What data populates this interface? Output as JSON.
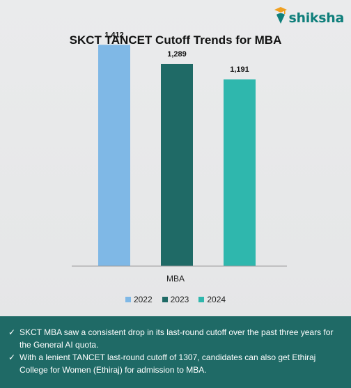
{
  "brand": {
    "name": "shiksha"
  },
  "chart_data": {
    "type": "bar",
    "title": "SKCT TANCET Cutoff Trends for MBA",
    "categories": [
      "MBA"
    ],
    "series": [
      {
        "name": "2022",
        "values": [
          1412
        ],
        "labels": [
          "1,412"
        ],
        "color": "#7fb8e6"
      },
      {
        "name": "2023",
        "values": [
          1289
        ],
        "labels": [
          "1,289"
        ],
        "color": "#1f6a66"
      },
      {
        "name": "2024",
        "values": [
          1191
        ],
        "labels": [
          "1,191"
        ],
        "color": "#2fb7ad"
      }
    ],
    "ylim": [
      0,
      1600
    ],
    "grid": false,
    "legend": "bottom"
  },
  "notes": [
    {
      "check": "✓",
      "text": "SKCT MBA saw a consistent drop in its last-round cutoff over the past three years for the General AI quota."
    },
    {
      "check": "✓",
      "text": "With a lenient TANCET last-round cutoff of 1307, candidates can also get Ethiraj College for Women (Ethiraj) for admission to MBA."
    }
  ]
}
